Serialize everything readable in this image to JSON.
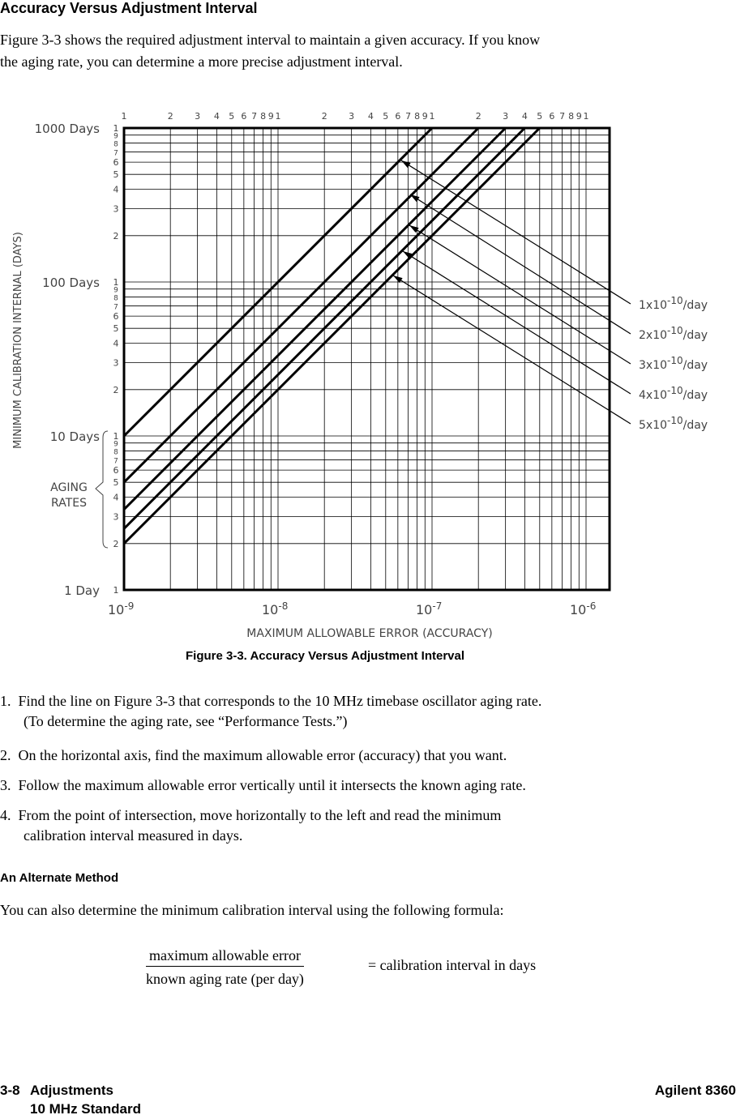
{
  "section_title": "Accuracy Versus Adjustment Interval",
  "intro": [
    "Figure 3-3 shows the required adjustment interval to maintain a given accuracy. If you know",
    "the aging rate, you can determine a more precise adjustment interval."
  ],
  "figure_caption": "Figure 3-3. Accuracy Versus Adjustment Interval",
  "chart_data": {
    "type": "line",
    "xlabel": "MAXIMUM  ALLOWABLE  ERROR  (ACCURACY)",
    "ylabel": "MINIMUM  CALIBRATION  INTERNAL  (DAYS)",
    "x_scale": "log",
    "y_scale": "log",
    "xlim": [
      1e-09,
      1e-06
    ],
    "ylim": [
      1,
      1000
    ],
    "x_tick_labels": [
      "10^-9",
      "10^-8",
      "10^-7",
      "10^-6"
    ],
    "x_tick_labels_display": [
      {
        "base": "10",
        "exp": "-9"
      },
      {
        "base": "10",
        "exp": "-8"
      },
      {
        "base": "10",
        "exp": "-7"
      },
      {
        "base": "10",
        "exp": "-6"
      }
    ],
    "y_tick_labels": [
      "1  Day",
      "10  Days",
      "100  Days",
      "1000  Days"
    ],
    "minor_tick_labels": [
      "1",
      "2",
      "3",
      "4",
      "5",
      "6",
      "7",
      "8",
      "9"
    ],
    "grid": true,
    "bracket_label": [
      "AGING",
      "RATES"
    ],
    "series": [
      {
        "name": "1x10-10/day",
        "rate": 1e-10,
        "label_base": "1x10",
        "label_exp": "-10",
        "label_unit": "/day"
      },
      {
        "name": "2x10-10/day",
        "rate": 2e-10,
        "label_base": "2x10",
        "label_exp": "-10",
        "label_unit": "/day"
      },
      {
        "name": "3x10-10/day",
        "rate": 3e-10,
        "label_base": "3x10",
        "label_exp": "-10",
        "label_unit": "/day"
      },
      {
        "name": "4x10-10/day",
        "rate": 4e-10,
        "label_base": "4x10",
        "label_exp": "-10",
        "label_unit": "/day"
      },
      {
        "name": "5x10-10/day",
        "rate": 5e-10,
        "label_base": "5x10",
        "label_exp": "-10",
        "label_unit": "/day"
      }
    ],
    "series_formula": "days = accuracy / rate"
  },
  "steps": [
    {
      "num": "1.",
      "lines": [
        "Find the line on Figure 3-3 that corresponds to the 10 MHz timebase oscillator aging rate.",
        "(To determine the aging rate, see “Performance Tests.”)"
      ]
    },
    {
      "num": "2.",
      "lines": [
        "On the horizontal axis, find the maximum allowable error (accuracy) that you want."
      ]
    },
    {
      "num": "3.",
      "lines": [
        "Follow the maximum allowable error vertically until it intersects the known aging rate."
      ]
    },
    {
      "num": "4.",
      "lines": [
        "From the point of intersection, move horizontally to the left and read the minimum",
        "calibration interval measured in days."
      ]
    }
  ],
  "alt_heading": "An Alternate Method",
  "alt_text": "You can also determine the minimum calibration interval using the following formula:",
  "formula": {
    "numerator": "maximum allowable error",
    "denominator": "known aging rate (per day)",
    "result": "= calibration interval in days"
  },
  "footer": {
    "page": "3-8",
    "chapter": "Adjustments",
    "subsection": "10 MHz Standard",
    "product": "Agilent 8360"
  }
}
